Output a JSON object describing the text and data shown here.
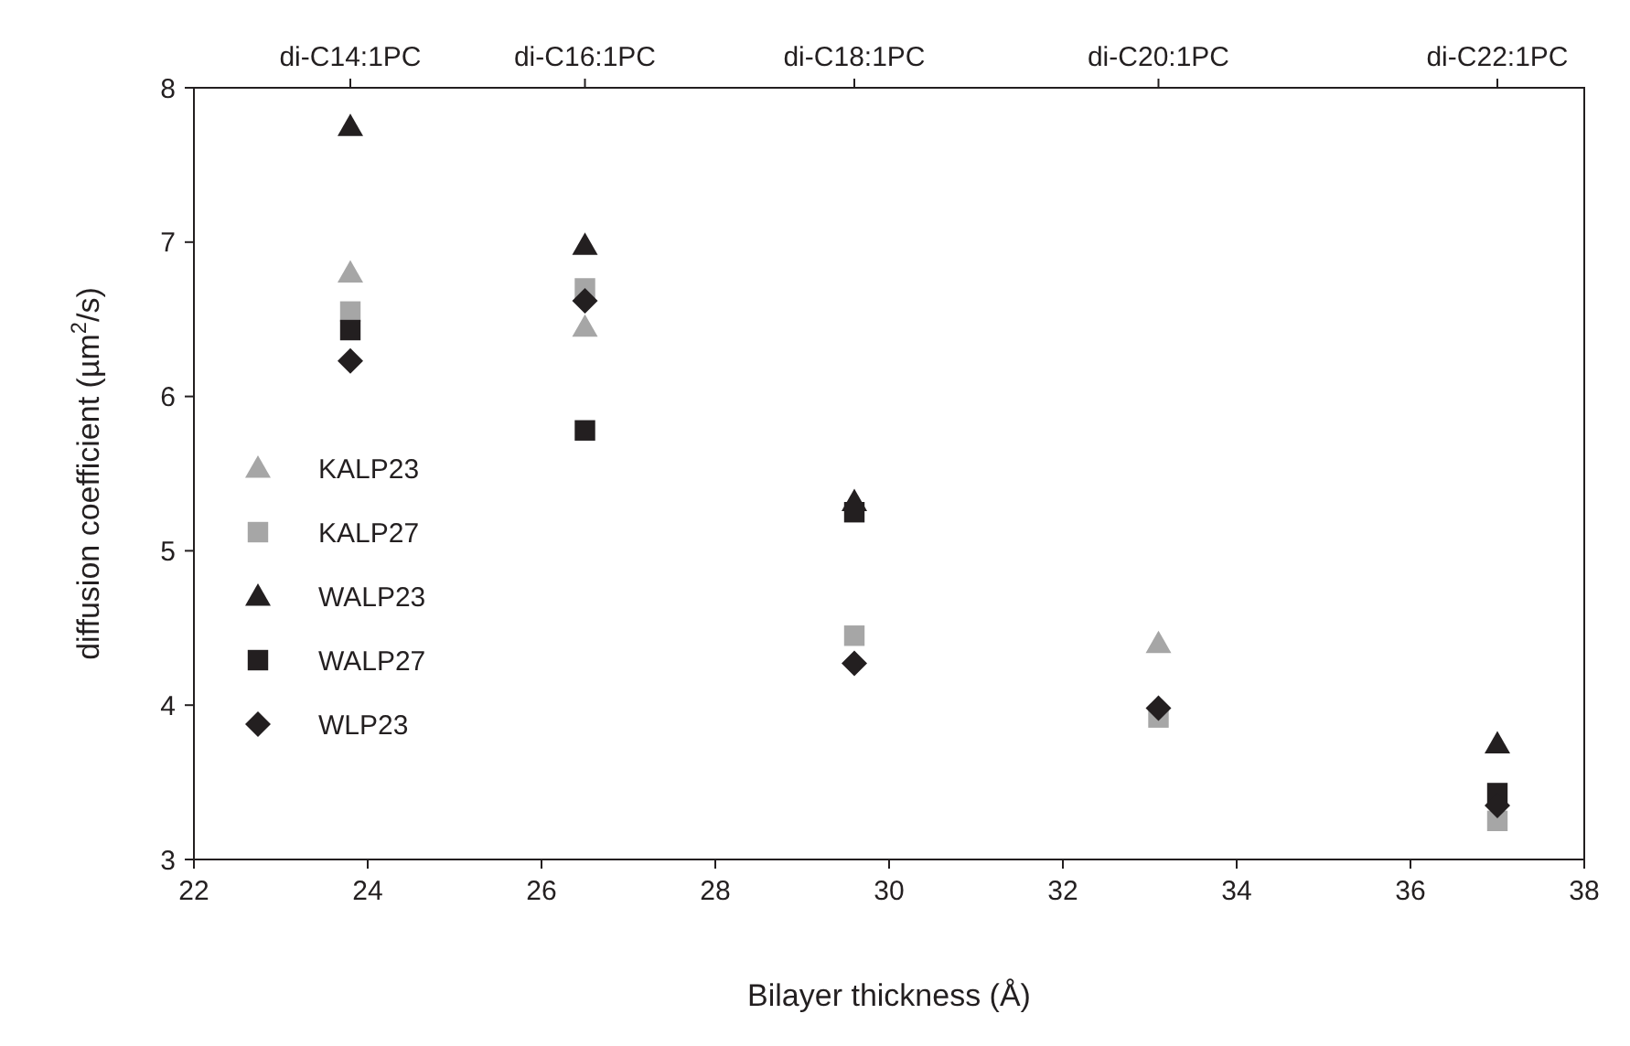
{
  "chart_data": {
    "type": "scatter",
    "xlabel": "Bilayer thickness (Å)",
    "ylabel": "diffusion coefficient (µm$^{2}$/s)",
    "x": [
      23.8,
      26.5,
      29.6,
      33.1,
      37
    ],
    "series": [
      {
        "name": "KALP23",
        "color": "#a6a6a6",
        "marker": "triangle",
        "values": [
          6.8,
          6.45,
          null,
          4.4,
          null
        ]
      },
      {
        "name": "KALP27",
        "color": "#a6a6a6",
        "marker": "square",
        "values": [
          6.55,
          6.7,
          4.45,
          3.92,
          3.25
        ]
      },
      {
        "name": "WALP23",
        "color": "#231f20",
        "marker": "triangle",
        "values": [
          7.75,
          6.98,
          5.32,
          null,
          3.75
        ]
      },
      {
        "name": "WALP27",
        "color": "#231f20",
        "marker": "square",
        "values": [
          6.43,
          5.78,
          5.25,
          null,
          3.43
        ]
      },
      {
        "name": "WLP23",
        "color": "#231f20",
        "marker": "diamond",
        "values": [
          6.23,
          6.62,
          4.27,
          3.98,
          3.35
        ]
      }
    ],
    "xlim": [
      22,
      38
    ],
    "xticks": [
      22,
      24,
      26,
      28,
      30,
      32,
      34,
      36,
      38
    ],
    "ylim": [
      3,
      8
    ],
    "yticks": [
      3,
      4,
      5,
      6,
      7,
      8
    ],
    "annotations": [
      {
        "text": "di-C14:1PC",
        "x": 23.8
      },
      {
        "text": "di-C16:1PC",
        "x": 26.5
      },
      {
        "text": "di-C18:1PC",
        "x": 29.6
      },
      {
        "text": "di-C20:1PC",
        "x": 33.1
      },
      {
        "text": "di-C22:1PC",
        "x": 37
      }
    ],
    "grid": false,
    "legend": "left"
  }
}
